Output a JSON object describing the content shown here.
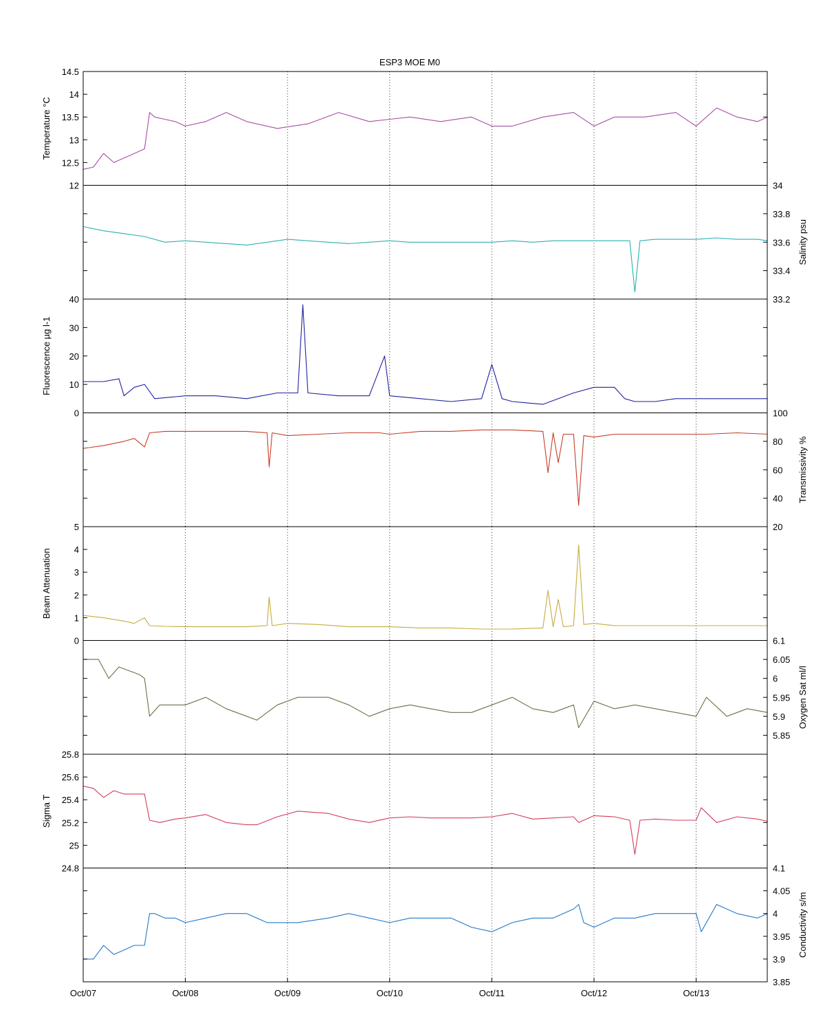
{
  "title": "ESP3 MOE   M0",
  "chart_data": {
    "type": "line",
    "title": "ESP3 MOE   M0",
    "x": {
      "ticks": [
        "Oct/07",
        "Oct/08",
        "Oct/09",
        "Oct/10",
        "Oct/11",
        "Oct/12",
        "Oct/13"
      ],
      "range_days": [
        0,
        6.7
      ],
      "grid": "dotted vertical"
    },
    "panels": [
      {
        "ylabel": "Temperature °C",
        "axis": "left",
        "ylim": [
          12,
          14.5
        ],
        "ticks": [
          "12",
          "12.5",
          "13",
          "13.5",
          "14",
          "14.5"
        ],
        "tick_values": [
          12,
          12.5,
          13,
          13.5,
          14,
          14.5
        ],
        "color": "#a64ca6",
        "series": {
          "x": [
            0,
            0.1,
            0.2,
            0.3,
            0.4,
            0.5,
            0.6,
            0.65,
            0.7,
            0.8,
            0.9,
            1.0,
            1.2,
            1.4,
            1.6,
            1.9,
            2.2,
            2.5,
            2.8,
            3.0,
            3.2,
            3.5,
            3.8,
            4.0,
            4.2,
            4.5,
            4.8,
            5.0,
            5.2,
            5.5,
            5.8,
            6.0,
            6.2,
            6.4,
            6.6,
            6.7
          ],
          "y": [
            12.35,
            12.4,
            12.7,
            12.5,
            12.6,
            12.7,
            12.8,
            13.6,
            13.5,
            13.45,
            13.4,
            13.3,
            13.4,
            13.6,
            13.4,
            13.25,
            13.35,
            13.6,
            13.4,
            13.45,
            13.5,
            13.4,
            13.5,
            13.3,
            13.3,
            13.5,
            13.6,
            13.3,
            13.5,
            13.5,
            13.6,
            13.3,
            13.7,
            13.5,
            13.4,
            13.5
          ]
        }
      },
      {
        "ylabel": "Salinity psu",
        "axis": "right",
        "ylim": [
          33.2,
          34
        ],
        "ticks": [
          "33.2",
          "33.4",
          "33.6",
          "33.8",
          "34"
        ],
        "tick_values": [
          33.2,
          33.4,
          33.6,
          33.8,
          34
        ],
        "color": "#2ab0b0",
        "series": {
          "x": [
            0,
            0.2,
            0.4,
            0.6,
            0.8,
            1.0,
            1.2,
            1.4,
            1.6,
            1.8,
            2.0,
            2.2,
            2.4,
            2.6,
            2.8,
            3.0,
            3.2,
            3.4,
            3.6,
            3.8,
            4.0,
            4.2,
            4.4,
            4.6,
            4.8,
            5.0,
            5.2,
            5.35,
            5.4,
            5.45,
            5.6,
            5.8,
            6.0,
            6.2,
            6.4,
            6.6,
            6.7
          ],
          "y": [
            33.71,
            33.68,
            33.66,
            33.64,
            33.6,
            33.61,
            33.6,
            33.59,
            33.58,
            33.6,
            33.62,
            33.61,
            33.6,
            33.59,
            33.6,
            33.61,
            33.6,
            33.6,
            33.6,
            33.6,
            33.6,
            33.61,
            33.6,
            33.61,
            33.61,
            33.61,
            33.61,
            33.61,
            33.25,
            33.61,
            33.62,
            33.62,
            33.62,
            33.63,
            33.62,
            33.62,
            33.61
          ]
        }
      },
      {
        "ylabel": "Fluorescence µg l-1",
        "axis": "left",
        "ylim": [
          0,
          40
        ],
        "ticks": [
          "0",
          "10",
          "20",
          "30",
          "40"
        ],
        "tick_values": [
          0,
          10,
          20,
          30,
          40
        ],
        "color": "#1f1fa0",
        "series": {
          "x": [
            0,
            0.2,
            0.35,
            0.4,
            0.5,
            0.6,
            0.7,
            1.0,
            1.3,
            1.6,
            1.9,
            2.1,
            2.15,
            2.2,
            2.5,
            2.8,
            2.95,
            3.0,
            3.3,
            3.6,
            3.9,
            4.0,
            4.1,
            4.2,
            4.5,
            4.8,
            5.0,
            5.2,
            5.3,
            5.4,
            5.6,
            5.8,
            6.0,
            6.2,
            6.4,
            6.6,
            6.7
          ],
          "y": [
            11,
            11,
            12,
            6,
            9,
            10,
            5,
            6,
            6,
            5,
            7,
            7,
            38,
            7,
            6,
            6,
            20,
            6,
            5,
            4,
            5,
            17,
            5,
            4,
            3,
            7,
            9,
            9,
            5,
            4,
            4,
            5,
            5,
            5,
            5,
            5,
            5
          ]
        }
      },
      {
        "ylabel": "Transmissivity %",
        "axis": "right",
        "ylim": [
          20,
          100
        ],
        "ticks": [
          "20",
          "40",
          "60",
          "80",
          "100"
        ],
        "tick_values": [
          20,
          40,
          60,
          80,
          100
        ],
        "color": "#c83c28",
        "series": {
          "x": [
            0,
            0.2,
            0.4,
            0.5,
            0.6,
            0.65,
            0.8,
            1.0,
            1.3,
            1.6,
            1.8,
            1.82,
            1.85,
            2.0,
            2.3,
            2.6,
            2.9,
            3.0,
            3.3,
            3.6,
            3.9,
            4.2,
            4.5,
            4.55,
            4.6,
            4.65,
            4.7,
            4.8,
            4.85,
            4.9,
            5.0,
            5.2,
            5.5,
            5.8,
            6.1,
            6.4,
            6.7
          ],
          "y": [
            75,
            77,
            80,
            82,
            76,
            86,
            87,
            87,
            87,
            87,
            86,
            62,
            86,
            84,
            85,
            86,
            86,
            85,
            87,
            87,
            88,
            88,
            87,
            58,
            86,
            65,
            85,
            85,
            35,
            84,
            83,
            85,
            85,
            85,
            85,
            86,
            85
          ]
        }
      },
      {
        "ylabel": "Beam Attenuation",
        "axis": "left",
        "ylim": [
          0,
          5
        ],
        "ticks": [
          "0",
          "1",
          "2",
          "3",
          "4",
          "5"
        ],
        "tick_values": [
          0,
          1,
          2,
          3,
          4,
          5
        ],
        "color": "#c4ac3c",
        "series": {
          "x": [
            0,
            0.2,
            0.4,
            0.5,
            0.6,
            0.65,
            0.8,
            1.0,
            1.3,
            1.6,
            1.8,
            1.82,
            1.85,
            2.0,
            2.3,
            2.6,
            2.9,
            3.0,
            3.3,
            3.6,
            3.9,
            4.2,
            4.5,
            4.55,
            4.6,
            4.65,
            4.7,
            4.8,
            4.85,
            4.9,
            5.0,
            5.2,
            5.5,
            5.8,
            6.1,
            6.4,
            6.7
          ],
          "y": [
            1.1,
            1.0,
            0.85,
            0.75,
            1.0,
            0.65,
            0.62,
            0.6,
            0.6,
            0.6,
            0.65,
            1.9,
            0.65,
            0.75,
            0.7,
            0.6,
            0.6,
            0.6,
            0.55,
            0.55,
            0.5,
            0.5,
            0.55,
            2.2,
            0.6,
            1.8,
            0.6,
            0.65,
            4.2,
            0.7,
            0.75,
            0.65,
            0.65,
            0.65,
            0.65,
            0.65,
            0.65
          ]
        }
      },
      {
        "ylabel": "Oxygen Sat ml/l",
        "axis": "right",
        "ylim": [
          5.8,
          6.1
        ],
        "ticks": [
          "5.85",
          "5.9",
          "5.95",
          "6",
          "6.05",
          "6.1"
        ],
        "tick_values": [
          5.85,
          5.9,
          5.95,
          6,
          6.05,
          6.1
        ],
        "color": "#6e6e46",
        "series": {
          "x": [
            0,
            0.15,
            0.25,
            0.35,
            0.45,
            0.55,
            0.6,
            0.65,
            0.75,
            0.9,
            1.0,
            1.2,
            1.4,
            1.6,
            1.7,
            1.9,
            2.1,
            2.4,
            2.6,
            2.8,
            3.0,
            3.2,
            3.4,
            3.6,
            3.8,
            4.0,
            4.2,
            4.4,
            4.6,
            4.8,
            4.85,
            5.0,
            5.2,
            5.4,
            5.6,
            5.8,
            6.0,
            6.1,
            6.3,
            6.5,
            6.7
          ],
          "y": [
            6.05,
            6.05,
            6.0,
            6.03,
            6.02,
            6.01,
            6.0,
            5.9,
            5.93,
            5.93,
            5.93,
            5.95,
            5.92,
            5.9,
            5.89,
            5.93,
            5.95,
            5.95,
            5.93,
            5.9,
            5.92,
            5.93,
            5.92,
            5.91,
            5.91,
            5.93,
            5.95,
            5.92,
            5.91,
            5.93,
            5.87,
            5.94,
            5.92,
            5.93,
            5.92,
            5.91,
            5.9,
            5.95,
            5.9,
            5.92,
            5.91
          ]
        }
      },
      {
        "ylabel": "Sigma T",
        "axis": "left",
        "ylim": [
          24.8,
          25.8
        ],
        "ticks": [
          "24.8",
          "25",
          "25.2",
          "25.4",
          "25.6",
          "25.8"
        ],
        "tick_values": [
          24.8,
          25,
          25.2,
          25.4,
          25.6,
          25.8
        ],
        "color": "#d23c5a",
        "series": {
          "x": [
            0,
            0.1,
            0.2,
            0.3,
            0.4,
            0.5,
            0.6,
            0.65,
            0.75,
            0.9,
            1.0,
            1.2,
            1.4,
            1.6,
            1.7,
            1.9,
            2.1,
            2.4,
            2.6,
            2.8,
            3.0,
            3.2,
            3.4,
            3.6,
            3.8,
            4.0,
            4.2,
            4.4,
            4.6,
            4.8,
            4.85,
            5.0,
            5.2,
            5.35,
            5.4,
            5.45,
            5.6,
            5.8,
            6.0,
            6.05,
            6.2,
            6.4,
            6.6,
            6.7
          ],
          "y": [
            25.52,
            25.5,
            25.42,
            25.48,
            25.45,
            25.45,
            25.45,
            25.22,
            25.2,
            25.23,
            25.24,
            25.27,
            25.2,
            25.18,
            25.18,
            25.25,
            25.3,
            25.28,
            25.23,
            25.2,
            25.24,
            25.25,
            25.24,
            25.24,
            25.24,
            25.25,
            25.28,
            25.23,
            25.24,
            25.25,
            25.2,
            25.26,
            25.25,
            25.22,
            24.92,
            25.22,
            25.23,
            25.22,
            25.22,
            25.33,
            25.2,
            25.25,
            25.23,
            25.21
          ]
        }
      },
      {
        "ylabel": "Conductivity s/m",
        "axis": "right",
        "ylim": [
          3.85,
          4.1
        ],
        "ticks": [
          "3.85",
          "3.9",
          "3.95",
          "4",
          "4.05",
          "4.1"
        ],
        "tick_values": [
          3.85,
          3.9,
          3.95,
          4,
          4.05,
          4.1
        ],
        "color": "#2178c8",
        "series": {
          "x": [
            0,
            0.1,
            0.2,
            0.3,
            0.4,
            0.5,
            0.6,
            0.65,
            0.7,
            0.8,
            0.9,
            1.0,
            1.2,
            1.4,
            1.6,
            1.8,
            1.9,
            2.1,
            2.4,
            2.6,
            2.8,
            3.0,
            3.2,
            3.4,
            3.6,
            3.8,
            4.0,
            4.2,
            4.4,
            4.6,
            4.8,
            4.85,
            4.9,
            5.0,
            5.2,
            5.4,
            5.6,
            5.8,
            6.0,
            6.05,
            6.2,
            6.4,
            6.6,
            6.7
          ],
          "y": [
            3.9,
            3.9,
            3.93,
            3.91,
            3.92,
            3.93,
            3.93,
            4.0,
            4.0,
            3.99,
            3.99,
            3.98,
            3.99,
            4.0,
            4.0,
            3.98,
            3.98,
            3.98,
            3.99,
            4.0,
            3.99,
            3.98,
            3.99,
            3.99,
            3.99,
            3.97,
            3.96,
            3.98,
            3.99,
            3.99,
            4.01,
            4.02,
            3.98,
            3.97,
            3.99,
            3.99,
            4.0,
            4.0,
            4.0,
            3.96,
            4.02,
            4.0,
            3.99,
            4.0
          ]
        }
      }
    ]
  }
}
